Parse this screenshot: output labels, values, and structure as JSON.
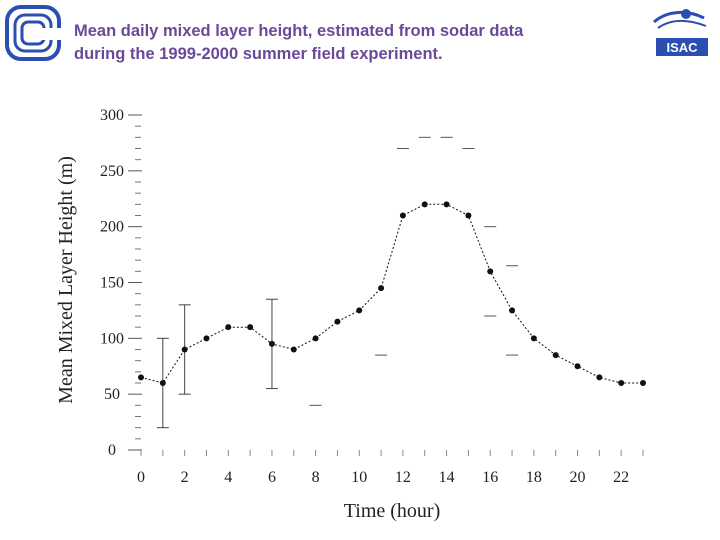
{
  "header": {
    "title_line1": "Mean daily mixed layer height, estimated from sodar data",
    "title_line2": "during the 1999-2000 summer  field experiment.",
    "logo_right_text": "ISAC"
  },
  "colors": {
    "title": "#6a4a98",
    "logo_blue": "#2a4fb0",
    "line": "#111111"
  },
  "chart_data": {
    "type": "line",
    "xlabel": "Time (hour)",
    "ylabel": "Mean Mixed Layer Height (m)",
    "xlim": [
      0,
      23
    ],
    "ylim": [
      0,
      300
    ],
    "xticks": [
      0,
      2,
      4,
      6,
      8,
      10,
      12,
      14,
      16,
      18,
      20,
      22
    ],
    "yticks": [
      0,
      50,
      100,
      150,
      200,
      250,
      300
    ],
    "series": [
      {
        "x": [
          0,
          1,
          2,
          3,
          4,
          5,
          6,
          7,
          8,
          9,
          10,
          11,
          12,
          13,
          14,
          15,
          16,
          17,
          18,
          19,
          20,
          21,
          22,
          23
        ],
        "values": [
          65,
          60,
          90,
          100,
          110,
          110,
          95,
          90,
          100,
          115,
          125,
          145,
          210,
          220,
          220,
          210,
          160,
          125,
          100,
          85,
          75,
          65,
          60,
          60
        ]
      }
    ],
    "error_bars": [
      {
        "x": 1,
        "low": 20,
        "high": 100
      },
      {
        "x": 2,
        "low": 50,
        "high": 130
      },
      {
        "x": 6,
        "low": 55,
        "high": 135
      }
    ],
    "spread_marks": [
      {
        "x": 8,
        "y": 40
      },
      {
        "x": 11,
        "y": 85
      },
      {
        "x": 12,
        "y": 270
      },
      {
        "x": 13,
        "y": 280
      },
      {
        "x": 14,
        "y": 280
      },
      {
        "x": 15,
        "y": 270
      },
      {
        "x": 16,
        "y": 200
      },
      {
        "x": 16,
        "y": 120
      },
      {
        "x": 17,
        "y": 165
      },
      {
        "x": 17,
        "y": 85
      }
    ],
    "grid": false
  }
}
